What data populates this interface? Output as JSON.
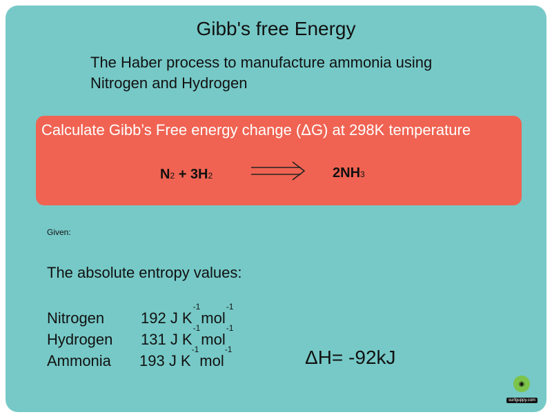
{
  "title": "Gibb's free Energy",
  "subtitle": {
    "line1": "The Haber process to manufacture ammonia using",
    "line2": "Nitrogen and Hydrogen"
  },
  "panel": {
    "question": "Calculate Gibb’s Free energy change  (ΔG) at 298K temperature",
    "equation": {
      "n": "N",
      "n_sub": "2",
      "plus_h": " + 3H",
      "h_sub": "2",
      "product": "2NH",
      "product_sub": "3"
    }
  },
  "given_label": "Given:",
  "entropy_heading": "The absolute entropy values:",
  "entropy_rows": [
    {
      "name": "Nitrogen",
      "value": "192 J K",
      "exp1": "-1",
      "unit2": "mol",
      "exp2": "-1"
    },
    {
      "name": "Hydrogen",
      "value": "131 J K",
      "exp1": "-1",
      "unit2": "mol",
      "exp2": "-1"
    },
    {
      "name": "Ammonia",
      "value": "193 J K",
      "exp1": "-1",
      "unit2": "mol",
      "exp2": "-1"
    }
  ],
  "delta_h": "ΔH= -92kJ",
  "logo": {
    "icon": "surfguppy-logo-icon",
    "text": "surfguppy.com"
  },
  "colors": {
    "background": "#76c9c7",
    "panel": "#f06352",
    "panel_text": "#ffffff"
  }
}
